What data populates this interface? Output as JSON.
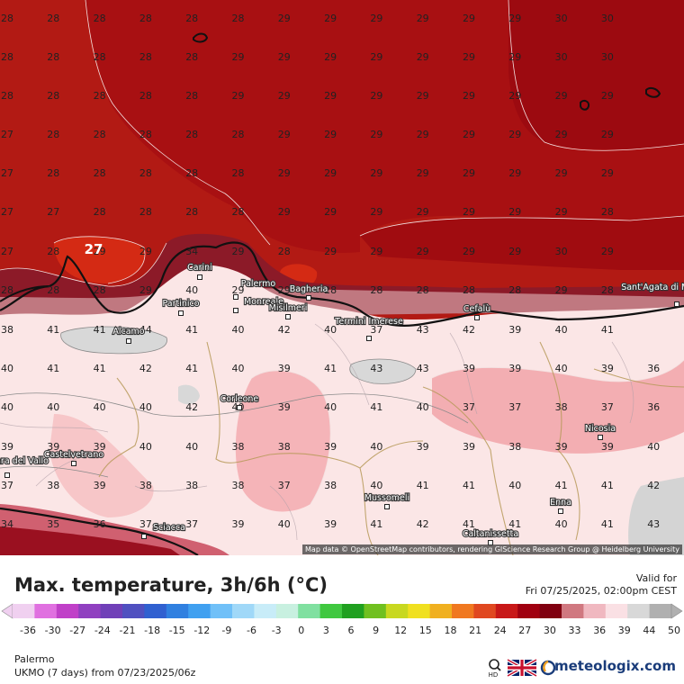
{
  "title": "Max. temperature, 3h/6h (°C)",
  "valid_label": "Valid for",
  "valid_datetime": "Fri 07/25/2025, 02:00pm CEST",
  "location": "Palermo",
  "model": "UKMO (7 days) from 07/23/2025/06z",
  "brand": "meteologix.com",
  "attribution": "Map data © OpenStreetMap contributors, rendering GIScience Research Group @ Heidelberg University",
  "legend_ticks": [
    "-36",
    "-30",
    "-27",
    "-24",
    "-21",
    "-18",
    "-15",
    "-12",
    "-9",
    "-6",
    "-3",
    "0",
    "3",
    "6",
    "9",
    "12",
    "15",
    "18",
    "21",
    "24",
    "27",
    "30",
    "33",
    "36",
    "39",
    "44",
    "50"
  ],
  "legend_colors": [
    "#f0d0f0",
    "#e070e0",
    "#c040c8",
    "#9040c0",
    "#7040b8",
    "#5050c0",
    "#3060d0",
    "#3080e0",
    "#40a0f0",
    "#70c0f8",
    "#a0d8f8",
    "#c8ecf8",
    "#c8f0e0",
    "#80e0a0",
    "#40c840",
    "#20a020",
    "#70c020",
    "#c8d820",
    "#f0e020",
    "#f0b020",
    "#f07820",
    "#e04820",
    "#c81818",
    "#a00010",
    "#800010",
    "#d07880",
    "#f0b8c0",
    "#fae0e4",
    "#d8d8d8",
    "#b0b0b0"
  ],
  "highlight_value": "27",
  "grid_values": [
    [
      "28",
      "28",
      "28",
      "28",
      "28",
      "28",
      "29",
      "29",
      "29",
      "29",
      "29",
      "29",
      "30",
      "30"
    ],
    [
      "28",
      "28",
      "28",
      "28",
      "28",
      "29",
      "29",
      "29",
      "29",
      "29",
      "29",
      "29",
      "30",
      "30"
    ],
    [
      "28",
      "28",
      "28",
      "28",
      "28",
      "29",
      "29",
      "29",
      "29",
      "29",
      "29",
      "29",
      "29",
      "29"
    ],
    [
      "27",
      "28",
      "28",
      "28",
      "28",
      "28",
      "29",
      "29",
      "29",
      "29",
      "29",
      "29",
      "29",
      "29"
    ],
    [
      "27",
      "28",
      "28",
      "28",
      "28",
      "28",
      "29",
      "29",
      "29",
      "29",
      "29",
      "29",
      "29",
      "29"
    ],
    [
      "27",
      "27",
      "28",
      "28",
      "28",
      "28",
      "29",
      "29",
      "29",
      "29",
      "29",
      "29",
      "29",
      "28"
    ],
    [
      "27",
      "28",
      "29",
      "29",
      "34",
      "29",
      "28",
      "29",
      "29",
      "29",
      "29",
      "29",
      "30",
      "29"
    ],
    [
      "28",
      "28",
      "28",
      "29",
      "40",
      "29",
      "29",
      "28",
      "28",
      "28",
      "28",
      "28",
      "29",
      "28"
    ],
    [
      "38",
      "41",
      "41",
      "44",
      "41",
      "40",
      "42",
      "40",
      "37",
      "43",
      "42",
      "39",
      "40",
      "41"
    ],
    [
      "40",
      "41",
      "41",
      "42",
      "41",
      "40",
      "39",
      "41",
      "43",
      "43",
      "39",
      "39",
      "40",
      "39",
      "36"
    ],
    [
      "40",
      "40",
      "40",
      "40",
      "42",
      "40",
      "39",
      "40",
      "41",
      "40",
      "37",
      "37",
      "38",
      "37",
      "36"
    ],
    [
      "39",
      "39",
      "39",
      "40",
      "40",
      "38",
      "38",
      "39",
      "40",
      "39",
      "39",
      "38",
      "39",
      "39",
      "40"
    ],
    [
      "37",
      "38",
      "39",
      "38",
      "38",
      "38",
      "37",
      "38",
      "40",
      "41",
      "41",
      "40",
      "41",
      "41",
      "42"
    ],
    [
      "34",
      "35",
      "36",
      "37",
      "37",
      "39",
      "40",
      "39",
      "41",
      "42",
      "41",
      "41",
      "40",
      "41",
      "43"
    ]
  ],
  "cities": [
    {
      "name": "Carini"
    },
    {
      "name": "Palermo"
    },
    {
      "name": "Bagheria"
    },
    {
      "name": "Monreale"
    },
    {
      "name": "Misilmeri"
    },
    {
      "name": "Partinico"
    },
    {
      "name": "Termini Imerese"
    },
    {
      "name": "Cefalù"
    },
    {
      "name": "Sant'Agata di Militello"
    },
    {
      "name": "Alcamo"
    },
    {
      "name": "Corleone"
    },
    {
      "name": "Nicosia"
    },
    {
      "name": "Mazara del Vallo"
    },
    {
      "name": "Castelvetrano"
    },
    {
      "name": "Mussomeli"
    },
    {
      "name": "Enna"
    },
    {
      "name": "Sciacca"
    },
    {
      "name": "Caltanissetta"
    }
  ]
}
